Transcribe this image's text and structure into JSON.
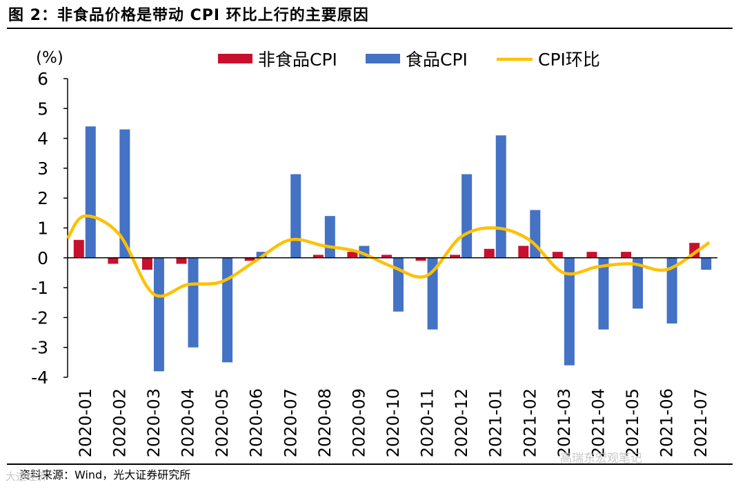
{
  "figure": {
    "title": "图 2：非食品价格是带动 CPI 环比上行的主要原因",
    "source": "资料来源：Wind，光大证券研究所",
    "watermark_right": "高瑞东宏观笔记",
    "watermark_left": "大道经济"
  },
  "colors": {
    "nonfood": "#c8102e",
    "food": "#4472c4",
    "cpi": "#ffc000",
    "axis": "#000000"
  },
  "chart_data": {
    "type": "bar",
    "title": "",
    "ylabel": "(%)",
    "xlabel": "",
    "ylim": [
      -4,
      6
    ],
    "yticks": [
      -4,
      -3,
      -2,
      -1,
      0,
      1,
      2,
      3,
      4,
      5,
      6
    ],
    "legend_position": "top",
    "categories": [
      "2020-01",
      "2020-02",
      "2020-03",
      "2020-04",
      "2020-05",
      "2020-06",
      "2020-07",
      "2020-08",
      "2020-09",
      "2020-10",
      "2020-11",
      "2020-12",
      "2021-01",
      "2021-02",
      "2021-03",
      "2021-04",
      "2021-05",
      "2021-06",
      "2021-07"
    ],
    "series": [
      {
        "name": "非食品CPI",
        "type": "bar",
        "values": [
          0.6,
          -0.2,
          -0.4,
          -0.2,
          0.0,
          -0.1,
          0.0,
          0.1,
          0.2,
          0.1,
          -0.1,
          0.1,
          0.3,
          0.4,
          0.2,
          0.2,
          0.2,
          0.0,
          0.5
        ]
      },
      {
        "name": "食品CPI",
        "type": "bar",
        "values": [
          4.4,
          4.3,
          -3.8,
          -3.0,
          -3.5,
          0.2,
          2.8,
          1.4,
          0.4,
          -1.8,
          -2.4,
          2.8,
          4.1,
          1.6,
          -3.6,
          -2.4,
          -1.7,
          -2.2,
          -0.4
        ]
      },
      {
        "name": "CPI环比",
        "type": "line",
        "values": [
          1.4,
          0.8,
          -1.2,
          -0.9,
          -0.8,
          -0.1,
          0.6,
          0.4,
          0.2,
          -0.3,
          -0.6,
          0.7,
          1.0,
          0.6,
          -0.5,
          -0.3,
          -0.2,
          -0.4,
          0.3
        ]
      }
    ]
  }
}
